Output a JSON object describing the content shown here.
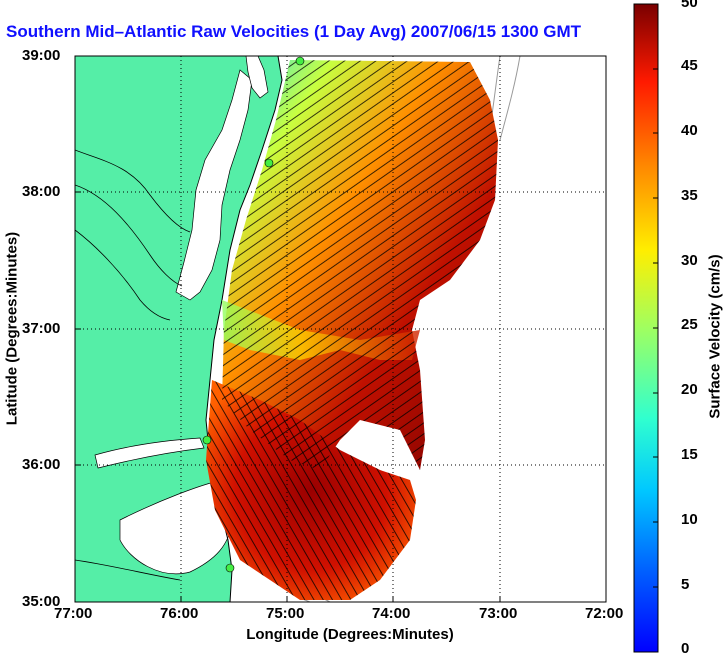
{
  "title": "Southern Mid–Atlantic Raw Velocities (1 Day Avg) 2007/06/15 1300 GMT",
  "xlabel": "Longitude (Degrees:Minutes)",
  "ylabel": "Latitude (Degrees:Minutes)",
  "x_ticks": [
    "77:00",
    "76:00",
    "75:00",
    "74:00",
    "73:00",
    "72:00"
  ],
  "y_ticks": [
    "39:00",
    "38:00",
    "37:00",
    "36:00",
    "35:00"
  ],
  "colorbar": {
    "label": "Surface Velocity (cm/s)",
    "ticks": [
      "0",
      "5",
      "10",
      "15",
      "20",
      "25",
      "30",
      "35",
      "40",
      "45",
      "50"
    ],
    "min": 0,
    "max": 50
  },
  "colors": {
    "land": "#55eea7",
    "water": "#ffffff",
    "station": "#44ee44",
    "title": "#1010ff"
  }
}
